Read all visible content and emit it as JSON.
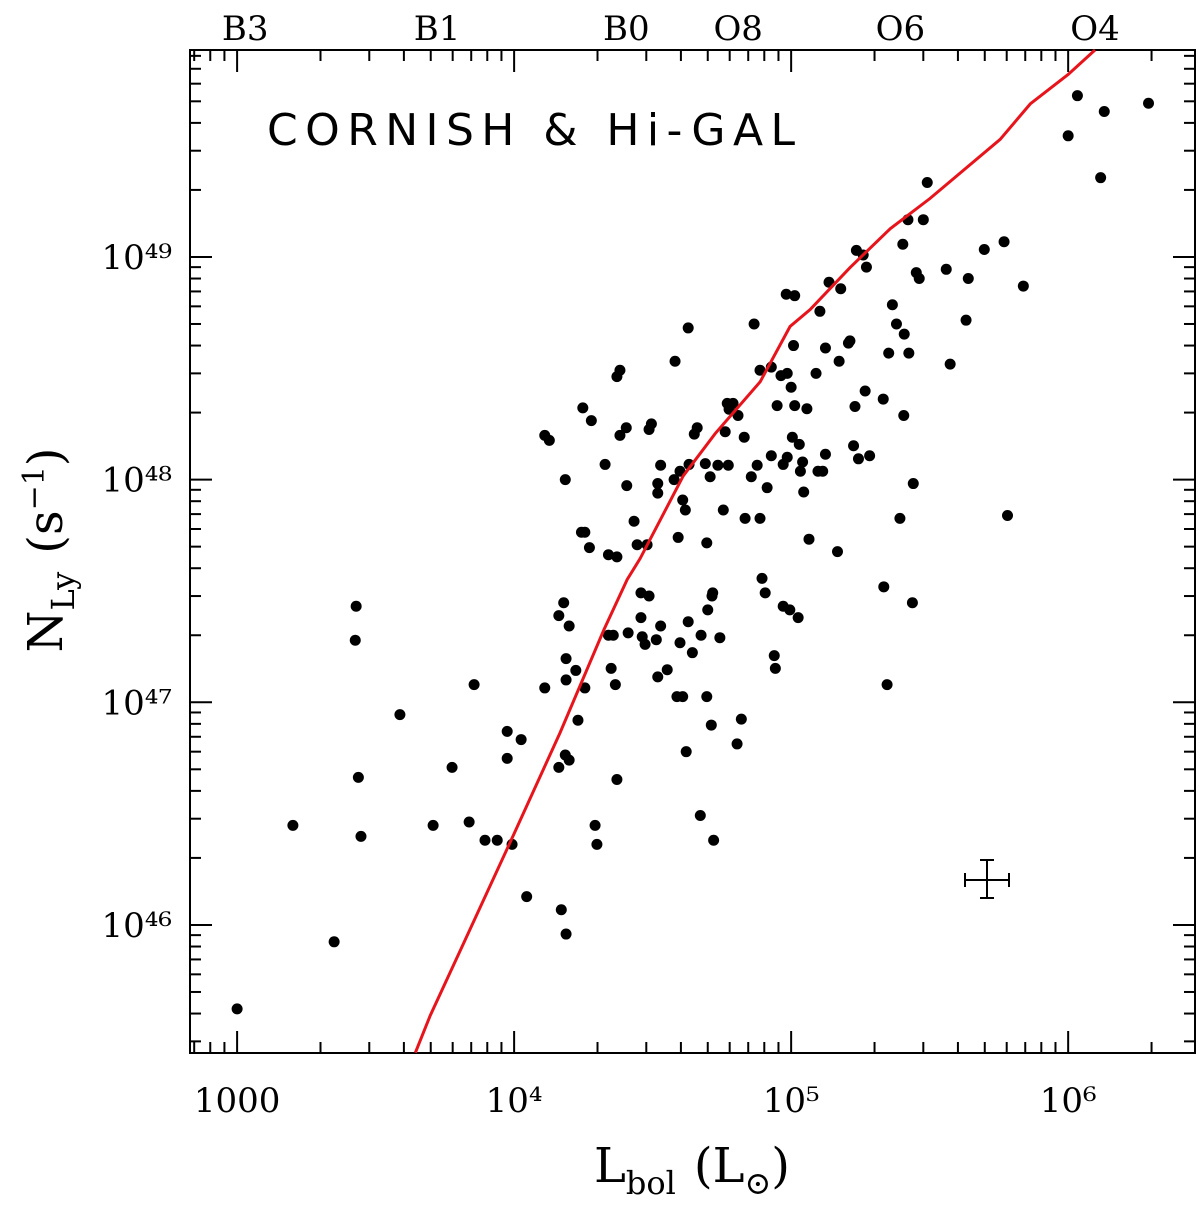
{
  "chart_data": {
    "type": "scatter",
    "annotation": "CORNISH & Hi-GAL",
    "xlabel": [
      "L",
      "bol",
      "(L",
      "⊙",
      ")"
    ],
    "ylabel": [
      "N",
      "Ly",
      "(s",
      "−1",
      ")"
    ],
    "xscale": "log",
    "yscale": "log",
    "xlim": [
      676,
      2870000
    ],
    "ylim": [
      2.66e+45,
      8.5e+49
    ],
    "xticks": [
      1000,
      {
        "value": 10000,
        "label": "10⁴"
      },
      {
        "value": 100000,
        "label": "10⁵"
      },
      {
        "value": 1000000,
        "label": "10⁶"
      }
    ],
    "yticks": [
      {
        "value": 1e+46,
        "label": "10⁴⁶"
      },
      {
        "value": 1e+47,
        "label": "10⁴⁷"
      },
      {
        "value": 1e+48,
        "label": "10⁴⁸"
      },
      {
        "value": 1e+49,
        "label": "10⁴⁹"
      }
    ],
    "x2ticks": [
      {
        "value": 1070,
        "label": "B3"
      },
      {
        "value": 5270,
        "label": "B1"
      },
      {
        "value": 25400,
        "label": "B0"
      },
      {
        "value": 64400,
        "label": "O8"
      },
      {
        "value": 248000,
        "label": "O6"
      },
      {
        "value": 1250000,
        "label": "O4"
      }
    ],
    "series": [
      {
        "type": "scatter",
        "color": "#000000",
        "x": [
          1000,
          1590,
          2240,
          2690,
          2670,
          2740,
          2800,
          3870,
          5100,
          5970,
          7170,
          6880,
          7850,
          8690,
          9830,
          9440,
          9440,
          10600,
          11100,
          12900,
          12900,
          13400,
          14500,
          14500,
          14800,
          15100,
          15300,
          15300,
          15400,
          15400,
          15400,
          15800,
          15800,
          16700,
          17000,
          17700,
          17500,
          18000,
          18700,
          18000,
          19000,
          19600,
          19900,
          21300,
          21900,
          21900,
          22400,
          22800,
          23500,
          23200,
          23500,
          23500,
          24100,
          24100,
          25400,
          25500,
          25800,
          27100,
          27800,
          28700,
          28700,
          29000,
          29700,
          30200,
          30700,
          31300,
          30700,
          32600,
          33000,
          33000,
          33000,
          33800,
          33800,
          35700,
          37800,
          38100,
          38700,
          39100,
          39700,
          39700,
          40600,
          40600,
          41500,
          41800,
          42500,
          42500,
          42800,
          44000,
          44700,
          45800,
          47000,
          47300,
          49000,
          49600,
          49600,
          50000,
          51000,
          51500,
          51800,
          52100,
          52500,
          54400,
          55300,
          56900,
          57800,
          58800,
          59300,
          59700,
          61700,
          63800,
          64300,
          66100,
          67700,
          68200,
          71800,
          73500,
          75400,
          77200,
          77200,
          78500,
          80600,
          81900,
          84800,
          84800,
          86900,
          87700,
          89000,
          91900,
          93600,
          93600,
          96800,
          96800,
          96000,
          98900,
          100000,
          101000,
          102000,
          103000,
          103000,
          106000,
          107000,
          108000,
          110000,
          111000,
          114000,
          116000,
          123000,
          125000,
          127000,
          130000,
          133000,
          133000,
          137000,
          147000,
          151000,
          149000,
          161000,
          163000,
          168000,
          170000,
          172000,
          175000,
          182000,
          185000,
          187000,
          192000,
          215000,
          216000,
          222000,
          225000,
          232000,
          240000,
          247000,
          253000,
          255000,
          256000,
          264000,
          266000,
          274000,
          276000,
          283000,
          290000,
          300000,
          310000,
          363000,
          375000,
          428000,
          436000,
          498000,
          587000,
          604000,
          689000,
          1000000,
          1080000,
          1310000,
          1350000,
          1950000
        ],
        "y": [
          4.2e+45,
          2.8e+46,
          8.4e+45,
          2.7e+47,
          1.9e+47,
          4.6e+46,
          2.5e+46,
          8.8e+46,
          2.8e+46,
          5.1e+46,
          1.2e+47,
          2.9e+46,
          2.4e+46,
          2.4e+46,
          2.3e+46,
          7.4e+46,
          5.6e+46,
          6.8e+46,
          1.34e+46,
          1.16e+47,
          1.58e+48,
          1.5e+48,
          5.1e+46,
          2.45e+47,
          1.17e+46,
          2.8e+47,
          1e+48,
          5.8e+46,
          9.1e+45,
          1.26e+47,
          1.57e+47,
          2.2e+47,
          5.5e+46,
          1.39e+47,
          8.3e+46,
          2.1e+48,
          5.8e+47,
          5.8e+47,
          4.95e+47,
          1.16e+47,
          1.84e+48,
          2.8e+46,
          2.3e+46,
          1.17e+48,
          2e+47,
          4.6e+47,
          1.42e+47,
          2e+47,
          4.5e+47,
          1.2e+47,
          4.5e+46,
          2.9e+48,
          3.1e+48,
          1.58e+48,
          1.71e+48,
          9.4e+47,
          2.05e+47,
          6.5e+47,
          5.1e+47,
          3.1e+47,
          2.4e+47,
          1.97e+47,
          1.82e+47,
          5.1e+47,
          3e+47,
          1.78e+48,
          1.68e+48,
          1.91e+47,
          9.6e+47,
          8.7e+47,
          1.3e+47,
          2.2e+47,
          1.16e+48,
          1.4e+47,
          1e+48,
          3.4e+48,
          1.06e+47,
          5.5e+47,
          1.85e+47,
          1.09e+48,
          1.06e+47,
          8.1e+47,
          7.3e+47,
          6e+46,
          4.8e+48,
          2.3e+47,
          1.17e+48,
          1.67e+47,
          1.6e+48,
          1.71e+48,
          3.1e+46,
          2e+47,
          1.18e+48,
          5.2e+47,
          1.06e+47,
          2.6e+47,
          1.03e+48,
          7.9e+46,
          3e+47,
          3.1e+47,
          2.4e+46,
          1.16e+48,
          1.95e+47,
          7.3e+47,
          1.64e+48,
          2.2e+48,
          1.16e+48,
          2.07e+48,
          2.2e+48,
          6.5e+46,
          1.94e+48,
          8.4e+46,
          1.55e+48,
          6.7e+47,
          1.03e+48,
          5e+48,
          1.16e+48,
          3.1e+48,
          6.7e+47,
          3.6e+47,
          3.1e+47,
          9.2e+47,
          3.2e+48,
          1.28e+48,
          1.62e+47,
          1.42e+47,
          2.15e+48,
          2.93e+48,
          1.17e+48,
          2.7e+47,
          1.26e+48,
          3e+48,
          6.8e+48,
          2.6e+47,
          2.6e+48,
          1.55e+48,
          4e+48,
          6.7e+48,
          2.15e+48,
          2.4e+47,
          1.44e+48,
          1.09e+48,
          1.2e+48,
          8.8e+47,
          2.08e+48,
          5.4e+47,
          3e+48,
          1.09e+48,
          5.7e+48,
          1.09e+48,
          3.9e+48,
          1.3e+48,
          7.7e+48,
          4.75e+47,
          7.2e+48,
          3.4e+48,
          4.1e+48,
          4.2e+48,
          1.42e+48,
          2.13e+48,
          1.07e+49,
          1.24e+48,
          1.02e+49,
          2.5e+48,
          9e+48,
          1.28e+48,
          2.3e+48,
          3.3e+47,
          1.2e+47,
          3.7e+48,
          6.1e+48,
          5e+48,
          6.7e+47,
          1.14e+49,
          1.94e+48,
          4.5e+48,
          1.47e+49,
          3.7e+48,
          2.8e+47,
          9.6e+47,
          8.5e+48,
          8e+48,
          1.47e+49,
          2.16e+49,
          8.8e+48,
          3.3e+48,
          5.2e+48,
          8e+48,
          1.08e+49,
          1.17e+49,
          6.9e+47,
          7.4e+48,
          3.5e+49,
          5.3e+49,
          2.27e+49,
          4.5e+49,
          4.9e+49
        ]
      },
      {
        "type": "line",
        "color": "#e8141c",
        "x": [
          4400,
          4980,
          6550,
          10000,
          14650,
          21100,
          25600,
          28500,
          40800,
          53200,
          77300,
          99100,
          117000,
          163000,
          228000,
          317000,
          568000,
          730000,
          1000000,
          1250000
        ],
        "y": [
          2.67e+45,
          3.92e+45,
          8.2e+45,
          2.57e+46,
          7.3e+46,
          2.12e+47,
          3.56e+47,
          4.42e+47,
          1.04e+48,
          1.61e+48,
          2.75e+48,
          4.87e+48,
          5.8e+48,
          8.95e+48,
          1.34e+49,
          1.83e+49,
          3.37e+49,
          4.87e+49,
          6.6e+49,
          8.5e+49
        ]
      }
    ]
  }
}
